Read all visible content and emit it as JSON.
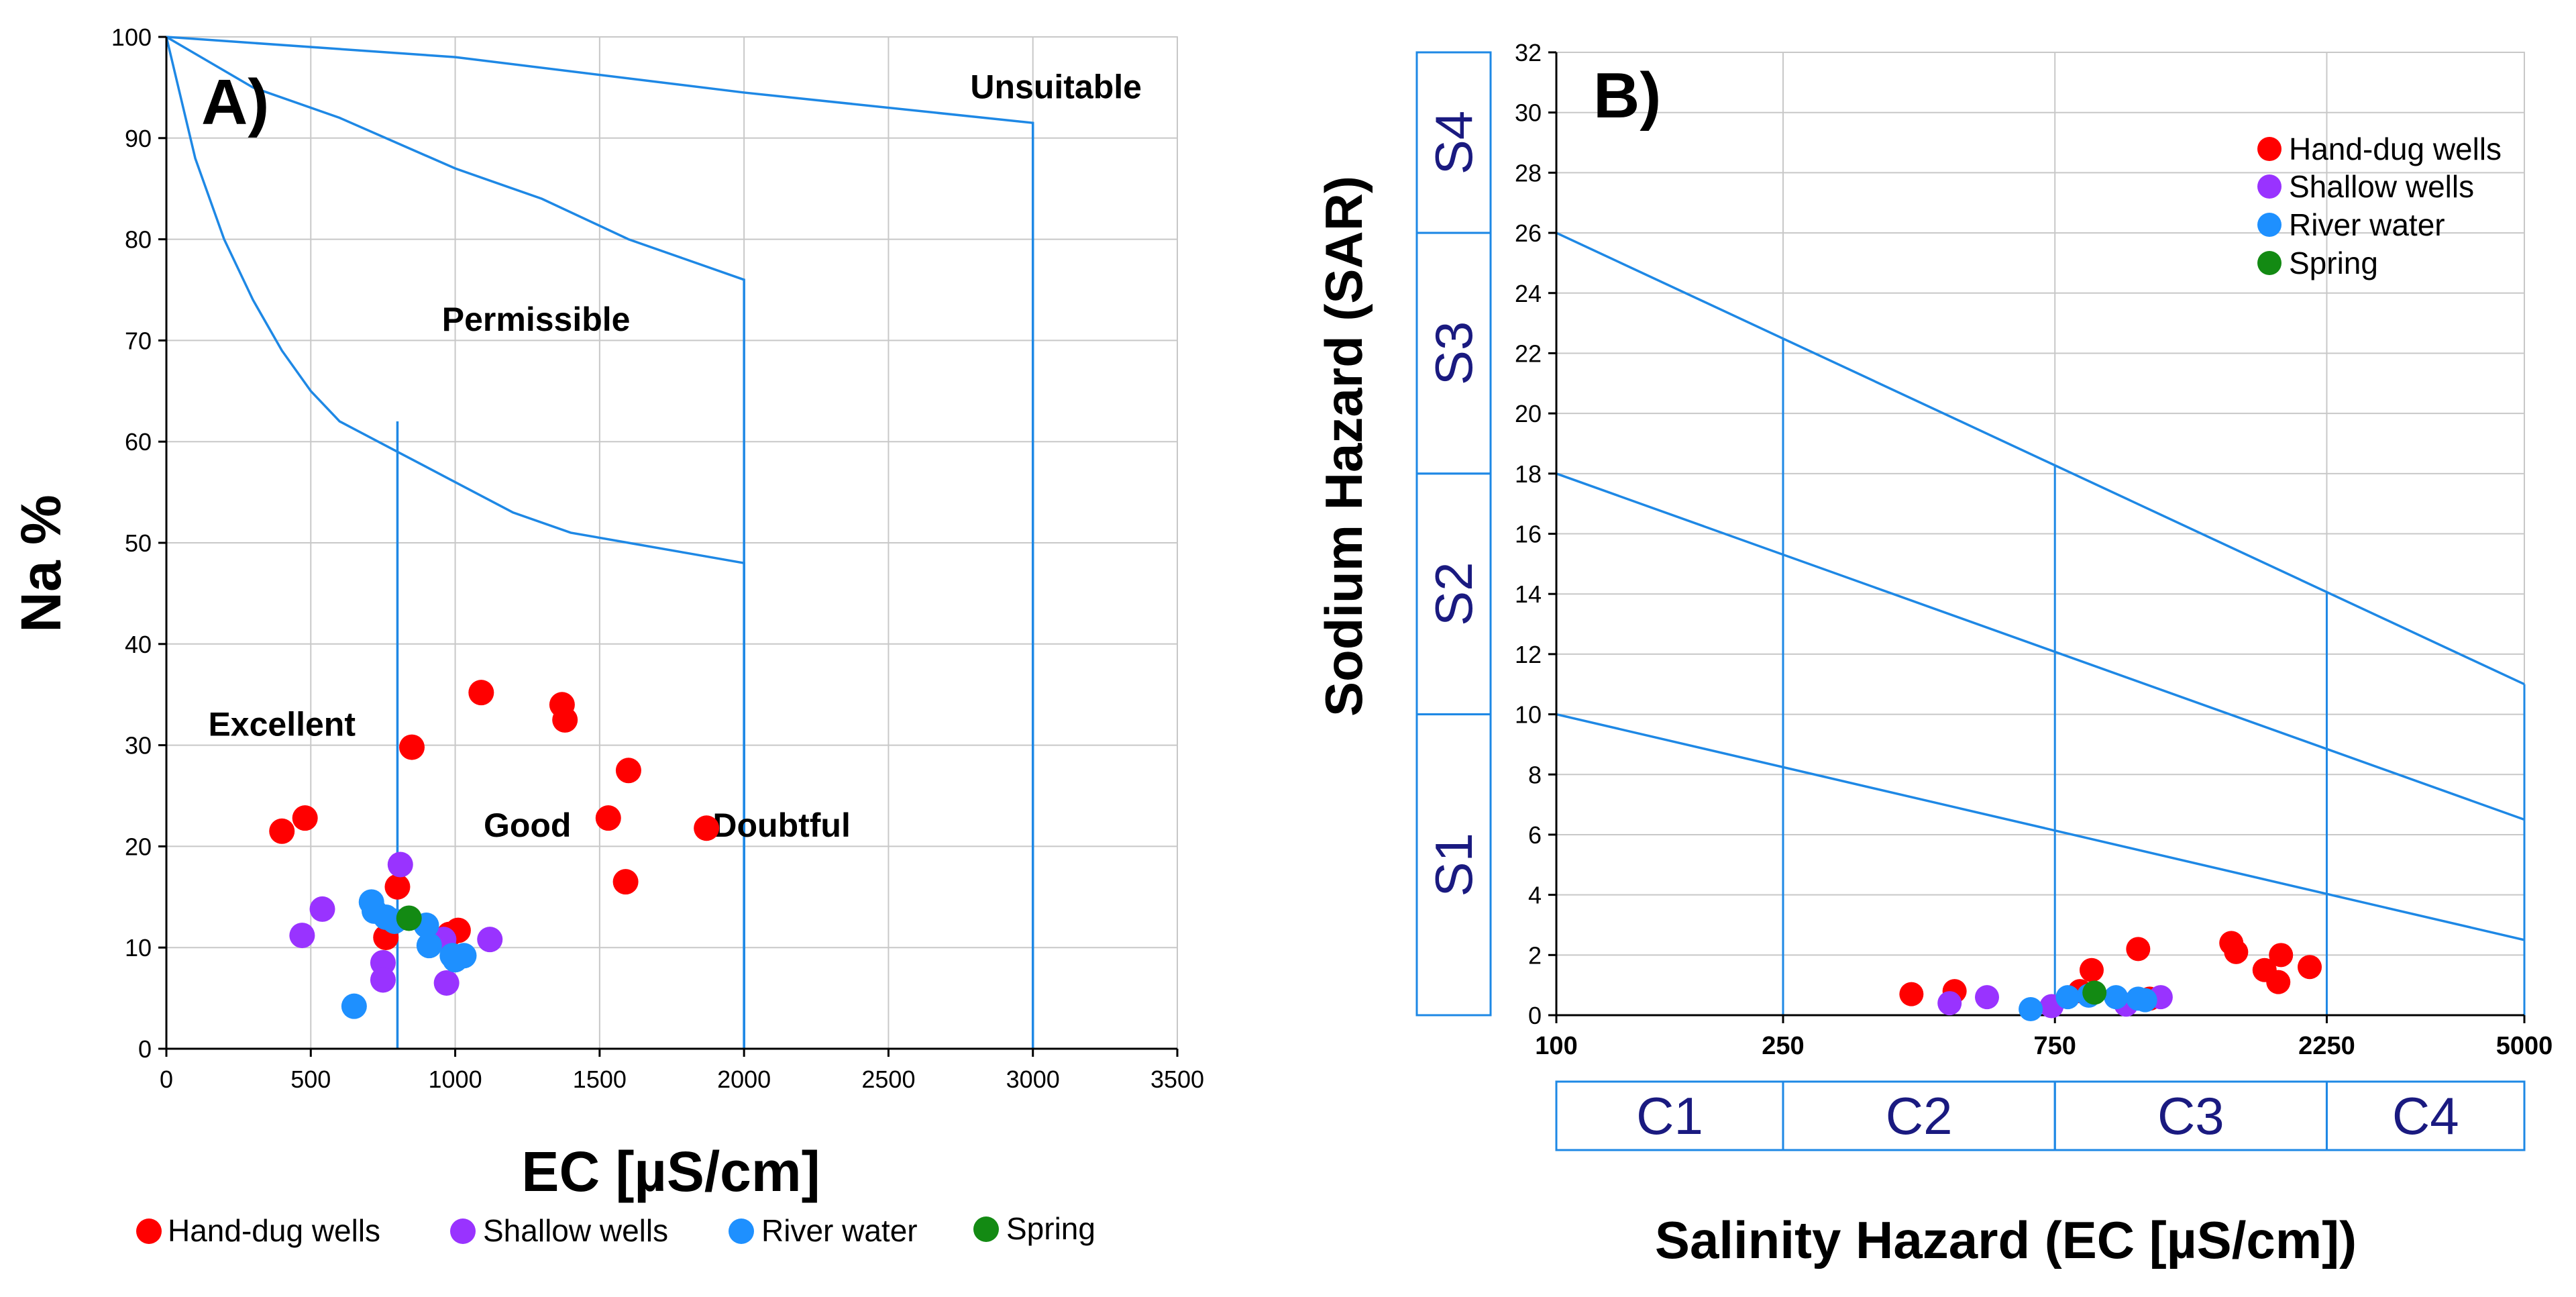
{
  "colors": {
    "hand_dug": "#ff0000",
    "shallow": "#9933ff",
    "river": "#1e90ff",
    "spring": "#138a13",
    "line": "#1e88e5",
    "grid": "#c8c8c8",
    "class_text": "#1a1a80"
  },
  "legend": [
    "Hand-dug wells",
    "Shallow wells",
    "River water",
    "Spring"
  ],
  "chart_data": [
    {
      "type": "scatter",
      "panel_label": "A)",
      "xlabel": "EC [µS/cm]",
      "ylabel": "Na %",
      "xlim": [
        0,
        3500
      ],
      "ylim": [
        0,
        100
      ],
      "xticks": [
        0,
        500,
        1000,
        1500,
        2000,
        2500,
        3000,
        3500
      ],
      "yticks": [
        0,
        10,
        20,
        30,
        40,
        50,
        60,
        70,
        80,
        90,
        100
      ],
      "region_labels": [
        {
          "text": "Unsuitable",
          "x": 3080,
          "y": 95
        },
        {
          "text": "Permissible",
          "x": 1280,
          "y": 72
        },
        {
          "text": "Excellent",
          "x": 400,
          "y": 32
        },
        {
          "text": "Good",
          "x": 1250,
          "y": 22
        },
        {
          "text": "Doubtful",
          "x": 2130,
          "y": 22
        }
      ],
      "boundaries": [
        {
          "name": "unsuitable",
          "points": [
            [
              0,
              100
            ],
            [
              1000,
              98
            ],
            [
              2000,
              94.5
            ],
            [
              3000,
              91.5
            ],
            [
              3000,
              0
            ]
          ]
        },
        {
          "name": "doubtful",
          "points": [
            [
              0,
              100
            ],
            [
              300,
              95
            ],
            [
              600,
              92
            ],
            [
              800,
              89.5
            ],
            [
              1000,
              87
            ],
            [
              1300,
              84
            ],
            [
              1600,
              80
            ],
            [
              1800,
              78
            ],
            [
              2000,
              76
            ],
            [
              2000,
              0
            ]
          ]
        },
        {
          "name": "permissible",
          "points": [
            [
              0,
              100
            ],
            [
              100,
              88
            ],
            [
              200,
              80
            ],
            [
              300,
              74
            ],
            [
              400,
              69
            ],
            [
              500,
              65
            ],
            [
              600,
              62
            ],
            [
              800,
              59
            ],
            [
              1000,
              56
            ],
            [
              1200,
              53
            ],
            [
              1400,
              51
            ],
            [
              1600,
              50
            ],
            [
              1800,
              49
            ],
            [
              2000,
              48
            ],
            [
              2000,
              0
            ]
          ]
        },
        {
          "name": "good",
          "points": [
            [
              800,
              62
            ],
            [
              800,
              0
            ]
          ]
        }
      ],
      "series": [
        {
          "name": "Hand-dug wells",
          "points": [
            [
              400,
              21.5
            ],
            [
              480,
              22.8
            ],
            [
              850,
              29.8
            ],
            [
              800,
              16
            ],
            [
              760,
              11
            ],
            [
              980,
              11.3
            ],
            [
              1010,
              11.7
            ],
            [
              1090,
              35.2
            ],
            [
              1370,
              34
            ],
            [
              1380,
              32.5
            ],
            [
              1530,
              22.8
            ],
            [
              1600,
              27.5
            ],
            [
              1590,
              16.5
            ],
            [
              1870,
              21.8
            ]
          ]
        },
        {
          "name": "Shallow wells",
          "points": [
            [
              470,
              11.2
            ],
            [
              540,
              13.8
            ],
            [
              810,
              18.2
            ],
            [
              750,
              8.5
            ],
            [
              750,
              6.8
            ],
            [
              960,
              10.8
            ],
            [
              970,
              6.5
            ],
            [
              1120,
              10.8
            ]
          ]
        },
        {
          "name": "River water",
          "points": [
            [
              650,
              4.2
            ],
            [
              710,
              14.5
            ],
            [
              720,
              13.6
            ],
            [
              760,
              13
            ],
            [
              790,
              12.6
            ],
            [
              900,
              12.2
            ],
            [
              910,
              10.2
            ],
            [
              990,
              9.2
            ],
            [
              1030,
              9.2
            ],
            [
              1000,
              8.8
            ]
          ]
        },
        {
          "name": "Spring",
          "points": [
            [
              840,
              12.9
            ]
          ]
        }
      ]
    },
    {
      "type": "scatter",
      "panel_label": "B)",
      "xlabel": "Salinity Hazard (EC [µS/cm])",
      "ylabel": "Sodium Hazard (SAR)",
      "xlim": [
        100,
        5000
      ],
      "ylim": [
        0,
        32
      ],
      "xticks": [
        100,
        250,
        750,
        2250,
        5000
      ],
      "yticks": [
        0,
        2,
        4,
        6,
        8,
        10,
        12,
        14,
        16,
        18,
        20,
        22,
        24,
        26,
        28,
        30,
        32
      ],
      "sodium_classes": [
        "S1",
        "S2",
        "S3",
        "S4"
      ],
      "salinity_classes": [
        "C1",
        "C2",
        "C3",
        "C4"
      ],
      "hazard_lines": [
        {
          "from": [
            100,
            10
          ],
          "to": [
            5000,
            2.5
          ]
        },
        {
          "from": [
            100,
            18
          ],
          "to": [
            5000,
            6.5
          ]
        },
        {
          "from": [
            100,
            26
          ],
          "to": [
            5000,
            11
          ]
        }
      ],
      "series": [
        {
          "name": "Hand-dug wells",
          "points": [
            [
              420,
              0.7
            ],
            [
              500,
              0.8
            ],
            [
              830,
              0.8
            ],
            [
              870,
              1.5
            ],
            [
              1050,
              2.2
            ],
            [
              1530,
              2.4
            ],
            [
              1560,
              2.1
            ],
            [
              1750,
              1.5
            ],
            [
              1850,
              1.1
            ],
            [
              1870,
              2.0
            ],
            [
              2100,
              1.6
            ],
            [
              1100,
              0.55
            ]
          ]
        },
        {
          "name": "Shallow wells",
          "points": [
            [
              490,
              0.4
            ],
            [
              570,
              0.6
            ],
            [
              740,
              0.3
            ],
            [
              1000,
              0.35
            ],
            [
              1150,
              0.6
            ]
          ]
        },
        {
          "name": "River water",
          "points": [
            [
              680,
              0.2
            ],
            [
              790,
              0.6
            ],
            [
              860,
              0.65
            ],
            [
              960,
              0.6
            ],
            [
              1050,
              0.55
            ],
            [
              1080,
              0.5
            ]
          ]
        },
        {
          "name": "Spring",
          "points": [
            [
              880,
              0.75
            ]
          ]
        }
      ]
    }
  ]
}
